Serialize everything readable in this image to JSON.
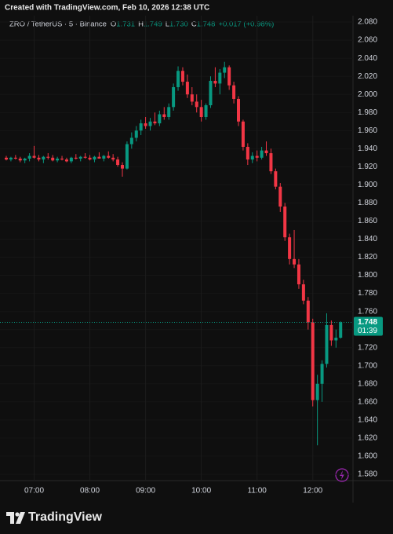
{
  "page": {
    "created": "Created with TradingView.com, Feb 10, 2026 12:38 UTC",
    "brand": "TradingView"
  },
  "chart_data": {
    "type": "candlestick",
    "title": "ZRO / TetherUS · 5 · Binance",
    "legend": [
      {
        "label": "O",
        "value": "1.731"
      },
      {
        "label": "H",
        "value": "1.749"
      },
      {
        "label": "L",
        "value": "1.730"
      },
      {
        "label": "C",
        "value": "1.748"
      }
    ],
    "change": "+0.017 (+0.98%)",
    "last_price_label": "1.748",
    "countdown": "01:39",
    "up_color": "#089981",
    "down_color": "#f23645",
    "categories": [
      null,
      null,
      null,
      null,
      null,
      null,
      "07:00",
      null,
      null,
      null,
      null,
      null,
      null,
      null,
      null,
      null,
      null,
      null,
      "08:00",
      null,
      null,
      null,
      null,
      null,
      null,
      null,
      null,
      null,
      null,
      null,
      "09:00",
      null,
      null,
      null,
      null,
      null,
      null,
      null,
      null,
      null,
      null,
      null,
      "10:00",
      null,
      null,
      null,
      null,
      null,
      null,
      null,
      null,
      null,
      null,
      null,
      "11:00",
      null,
      null,
      null,
      null,
      null,
      null,
      null,
      null,
      null,
      null,
      null,
      "12:00",
      null,
      null,
      null,
      null,
      null,
      null
    ],
    "open": [
      1.93,
      1.928,
      1.93,
      1.929,
      1.927,
      1.929,
      1.932,
      1.93,
      1.928,
      1.931,
      1.93,
      1.927,
      1.929,
      1.928,
      1.926,
      1.93,
      1.929,
      1.931,
      1.93,
      1.928,
      1.931,
      1.929,
      1.932,
      1.93,
      1.928,
      1.922,
      1.918,
      1.945,
      1.952,
      1.96,
      1.968,
      1.965,
      1.97,
      1.968,
      1.978,
      1.975,
      1.986,
      2.008,
      2.026,
      2.014,
      2.0,
      1.992,
      1.986,
      1.975,
      1.988,
      2.015,
      2.012,
      2.024,
      2.03,
      2.01,
      1.995,
      1.97,
      1.942,
      1.928,
      1.932,
      1.93,
      1.938,
      1.935,
      1.915,
      1.898,
      1.876,
      1.842,
      1.818,
      1.812,
      1.79,
      1.772,
      1.748,
      1.662,
      1.68,
      1.702,
      1.745,
      1.728,
      1.731
    ],
    "high": [
      1.932,
      1.931,
      1.933,
      1.931,
      1.93,
      1.935,
      1.943,
      1.933,
      1.932,
      1.935,
      1.933,
      1.931,
      1.932,
      1.93,
      1.931,
      1.934,
      1.932,
      1.935,
      1.933,
      1.932,
      1.936,
      1.933,
      1.937,
      1.934,
      1.931,
      1.925,
      1.948,
      1.958,
      1.965,
      1.972,
      1.975,
      1.974,
      1.98,
      1.982,
      1.986,
      1.99,
      2.012,
      2.031,
      2.03,
      2.022,
      2.008,
      2.0,
      1.994,
      1.99,
      2.02,
      2.03,
      2.028,
      2.036,
      2.032,
      2.014,
      1.998,
      1.972,
      1.946,
      1.936,
      1.938,
      1.942,
      1.948,
      1.94,
      1.918,
      1.902,
      1.88,
      1.846,
      1.85,
      1.818,
      1.795,
      1.776,
      1.752,
      1.69,
      1.706,
      1.758,
      1.75,
      1.74,
      1.749
    ],
    "low": [
      1.927,
      1.926,
      1.928,
      1.925,
      1.924,
      1.926,
      1.929,
      1.926,
      1.924,
      1.928,
      1.926,
      1.925,
      1.927,
      1.925,
      1.924,
      1.928,
      1.926,
      1.929,
      1.927,
      1.925,
      1.929,
      1.926,
      1.929,
      1.926,
      1.92,
      1.909,
      1.917,
      1.94,
      1.948,
      1.955,
      1.962,
      1.96,
      1.966,
      1.965,
      1.972,
      1.972,
      1.982,
      2.004,
      2.01,
      1.996,
      1.988,
      1.98,
      1.97,
      1.972,
      1.985,
      2.008,
      2.0,
      2.018,
      2.005,
      1.99,
      1.965,
      1.938,
      1.922,
      1.924,
      1.926,
      1.928,
      1.932,
      1.912,
      1.895,
      1.87,
      1.838,
      1.812,
      1.808,
      1.785,
      1.768,
      1.74,
      1.655,
      1.612,
      1.66,
      1.698,
      1.722,
      1.72,
      1.73
    ],
    "close": [
      1.928,
      1.93,
      1.929,
      1.927,
      1.929,
      1.932,
      1.93,
      1.928,
      1.931,
      1.93,
      1.927,
      1.929,
      1.928,
      1.926,
      1.93,
      1.929,
      1.931,
      1.93,
      1.928,
      1.931,
      1.929,
      1.932,
      1.93,
      1.928,
      1.922,
      1.918,
      1.945,
      1.952,
      1.96,
      1.968,
      1.965,
      1.97,
      1.968,
      1.978,
      1.975,
      1.986,
      2.008,
      2.026,
      2.014,
      2.0,
      1.992,
      1.986,
      1.975,
      1.988,
      2.015,
      2.012,
      2.024,
      2.03,
      2.01,
      1.995,
      1.97,
      1.942,
      1.928,
      1.932,
      1.93,
      1.938,
      1.935,
      1.915,
      1.898,
      1.876,
      1.842,
      1.818,
      1.812,
      1.79,
      1.772,
      1.748,
      1.662,
      1.68,
      1.702,
      1.745,
      1.728,
      1.731,
      1.748
    ],
    "ylim": [
      1.573,
      2.087
    ],
    "yticks": [
      {
        "value": 1.58,
        "label": "1.580"
      },
      {
        "value": 1.6,
        "label": "1.600"
      },
      {
        "value": 1.62,
        "label": "1.620"
      },
      {
        "value": 1.64,
        "label": "1.640"
      },
      {
        "value": 1.66,
        "label": "1.660"
      },
      {
        "value": 1.68,
        "label": "1.680"
      },
      {
        "value": 1.7,
        "label": "1.700"
      },
      {
        "value": 1.72,
        "label": "1.720"
      },
      {
        "value": 1.74,
        "label": "1.740"
      },
      {
        "value": 1.76,
        "label": "1.760"
      },
      {
        "value": 1.78,
        "label": "1.780"
      },
      {
        "value": 1.8,
        "label": "1.800"
      },
      {
        "value": 1.82,
        "label": "1.820"
      },
      {
        "value": 1.84,
        "label": "1.840"
      },
      {
        "value": 1.86,
        "label": "1.860"
      },
      {
        "value": 1.88,
        "label": "1.880"
      },
      {
        "value": 1.9,
        "label": "1.900"
      },
      {
        "value": 1.92,
        "label": "1.920"
      },
      {
        "value": 1.94,
        "label": "1.940"
      },
      {
        "value": 1.96,
        "label": "1.960"
      },
      {
        "value": 1.98,
        "label": "1.980"
      },
      {
        "value": 2.0,
        "label": "2.000"
      },
      {
        "value": 2.02,
        "label": "2.020"
      },
      {
        "value": 2.04,
        "label": "2.040"
      },
      {
        "value": 2.06,
        "label": "2.060"
      },
      {
        "value": 2.08,
        "label": "2.080"
      }
    ],
    "grid": true
  }
}
